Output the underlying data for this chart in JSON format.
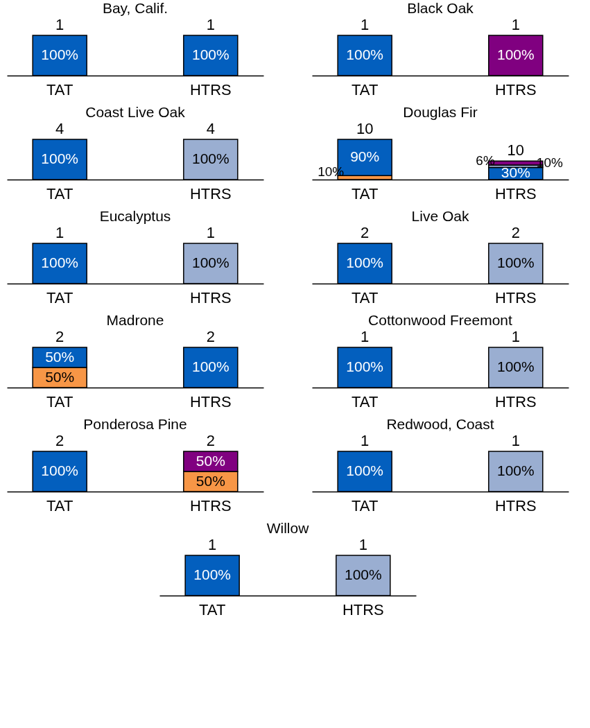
{
  "chart_data": [
    {
      "type": "bar",
      "stacked": true,
      "title": "Bay, Calif.",
      "categories": [
        "TAT",
        "HTRS"
      ],
      "annotations": [
        {
          "text": "1",
          "x": "TAT",
          "y": 100
        },
        {
          "text": "1",
          "x": "HTRS",
          "y": 100
        }
      ],
      "series": [
        {
          "color": "#035fbe",
          "values": [
            100,
            100
          ],
          "value_labels": [
            "100%",
            "100%"
          ]
        }
      ]
    },
    {
      "type": "bar",
      "stacked": true,
      "title": "Black Oak",
      "categories": [
        "TAT",
        "HTRS"
      ],
      "annotations": [
        {
          "text": "1",
          "x": "TAT",
          "y": 100
        },
        {
          "text": "1",
          "x": "HTRS",
          "y": 100
        }
      ],
      "series": [
        {
          "color": "#035fbe",
          "values": [
            100,
            null
          ],
          "value_labels": [
            "100%",
            null
          ]
        },
        {
          "color": "#800080",
          "values": [
            null,
            100
          ],
          "value_labels": [
            null,
            "100%"
          ]
        }
      ]
    },
    {
      "type": "bar",
      "stacked": true,
      "title": "Coast Live Oak",
      "categories": [
        "TAT",
        "HTRS"
      ],
      "annotations": [
        {
          "text": "4",
          "x": "TAT",
          "y": 100
        },
        {
          "text": "4",
          "x": "HTRS",
          "y": 100
        }
      ],
      "series": [
        {
          "color": "#035fbe",
          "values": [
            100,
            null
          ],
          "value_labels": [
            "100%",
            null
          ]
        },
        {
          "color": "#9aaed1",
          "values": [
            null,
            100
          ],
          "value_labels": [
            null,
            "100%"
          ]
        }
      ]
    },
    {
      "type": "bar",
      "stacked": true,
      "title": "Douglas Fir",
      "categories": [
        "TAT",
        "HTRS"
      ],
      "annotations": [
        {
          "text": "10",
          "x": "TAT",
          "y": 100
        },
        {
          "text": "10",
          "x": "HTRS",
          "y": 46
        }
      ],
      "series": [
        {
          "color": "#f79646",
          "values": [
            10,
            null
          ],
          "value_labels": [
            "10%",
            null
          ]
        },
        {
          "color": "#035fbe",
          "values": [
            90,
            30
          ],
          "value_labels": [
            "90%",
            "30%"
          ]
        },
        {
          "color": "#9aaed1",
          "values": [
            null,
            6
          ],
          "value_labels": [
            null,
            "6%"
          ]
        },
        {
          "color": "#800080",
          "values": [
            null,
            10
          ],
          "value_labels": [
            null,
            "10%"
          ]
        }
      ]
    },
    {
      "type": "bar",
      "stacked": true,
      "title": "Eucalyptus",
      "categories": [
        "TAT",
        "HTRS"
      ],
      "annotations": [
        {
          "text": "1",
          "x": "TAT",
          "y": 100
        },
        {
          "text": "1",
          "x": "HTRS",
          "y": 100
        }
      ],
      "series": [
        {
          "color": "#035fbe",
          "values": [
            100,
            null
          ],
          "value_labels": [
            "100%",
            null
          ]
        },
        {
          "color": "#9aaed1",
          "values": [
            null,
            100
          ],
          "value_labels": [
            null,
            "100%"
          ]
        }
      ]
    },
    {
      "type": "bar",
      "stacked": true,
      "title": "Live Oak",
      "categories": [
        "TAT",
        "HTRS"
      ],
      "annotations": [
        {
          "text": "2",
          "x": "TAT",
          "y": 100
        },
        {
          "text": "2",
          "x": "HTRS",
          "y": 100
        }
      ],
      "series": [
        {
          "color": "#035fbe",
          "values": [
            100,
            null
          ],
          "value_labels": [
            "100%",
            null
          ]
        },
        {
          "color": "#9aaed1",
          "values": [
            null,
            100
          ],
          "value_labels": [
            null,
            "100%"
          ]
        }
      ]
    },
    {
      "type": "bar",
      "stacked": true,
      "title": "Madrone",
      "categories": [
        "TAT",
        "HTRS"
      ],
      "annotations": [
        {
          "text": "2",
          "x": "TAT",
          "y": 100
        },
        {
          "text": "2",
          "x": "HTRS",
          "y": 100
        }
      ],
      "series": [
        {
          "color": "#f79646",
          "values": [
            50,
            null
          ],
          "value_labels": [
            "50%",
            null
          ]
        },
        {
          "color": "#035fbe",
          "values": [
            50,
            100
          ],
          "value_labels": [
            "50%",
            "100%"
          ]
        }
      ]
    },
    {
      "type": "bar",
      "stacked": true,
      "title": "Cottonwood Freemont",
      "categories": [
        "TAT",
        "HTRS"
      ],
      "annotations": [
        {
          "text": "1",
          "x": "TAT",
          "y": 100
        },
        {
          "text": "1",
          "x": "HTRS",
          "y": 100
        }
      ],
      "series": [
        {
          "color": "#035fbe",
          "values": [
            100,
            null
          ],
          "value_labels": [
            "100%",
            null
          ]
        },
        {
          "color": "#9aaed1",
          "values": [
            null,
            100
          ],
          "value_labels": [
            null,
            "100%"
          ]
        }
      ]
    },
    {
      "type": "bar",
      "stacked": true,
      "title": "Ponderosa Pine",
      "categories": [
        "TAT",
        "HTRS"
      ],
      "annotations": [
        {
          "text": "2",
          "x": "TAT",
          "y": 100
        },
        {
          "text": "2",
          "x": "HTRS",
          "y": 100
        }
      ],
      "series": [
        {
          "color": "#035fbe",
          "values": [
            100,
            null
          ],
          "value_labels": [
            "100%",
            null
          ]
        },
        {
          "color": "#f79646",
          "values": [
            null,
            50
          ],
          "value_labels": [
            null,
            "50%"
          ]
        },
        {
          "color": "#800080",
          "values": [
            null,
            50
          ],
          "value_labels": [
            null,
            "50%"
          ]
        }
      ]
    },
    {
      "type": "bar",
      "stacked": true,
      "title": "Redwood, Coast",
      "categories": [
        "TAT",
        "HTRS"
      ],
      "annotations": [
        {
          "text": "1",
          "x": "TAT",
          "y": 100
        },
        {
          "text": "1",
          "x": "HTRS",
          "y": 100
        }
      ],
      "series": [
        {
          "color": "#035fbe",
          "values": [
            100,
            null
          ],
          "value_labels": [
            "100%",
            null
          ]
        },
        {
          "color": "#9aaed1",
          "values": [
            null,
            100
          ],
          "value_labels": [
            null,
            "100%"
          ]
        }
      ]
    },
    {
      "type": "bar",
      "stacked": true,
      "title": "Willow",
      "categories": [
        "TAT",
        "HTRS"
      ],
      "annotations": [
        {
          "text": "1",
          "x": "TAT",
          "y": 100
        },
        {
          "text": "1",
          "x": "HTRS",
          "y": 100
        }
      ],
      "series": [
        {
          "color": "#035fbe",
          "values": [
            100,
            null
          ],
          "value_labels": [
            "100%",
            null
          ]
        },
        {
          "color": "#9aaed1",
          "values": [
            null,
            100
          ],
          "value_labels": [
            null,
            "100%"
          ]
        }
      ]
    }
  ]
}
